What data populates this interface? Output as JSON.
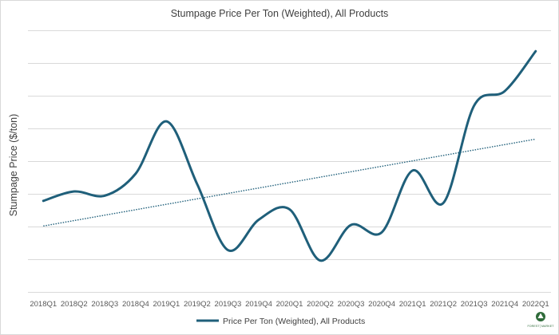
{
  "chart_data": {
    "type": "line",
    "title": "Stumpage Price Per Ton (Weighted), All Products",
    "xlabel": "",
    "ylabel": "Stumpage Price ($/ton)",
    "categories": [
      "2018Q1",
      "2018Q2",
      "2018Q3",
      "2018Q4",
      "2019Q1",
      "2019Q2",
      "2019Q3",
      "2019Q4",
      "2020Q1",
      "2020Q2",
      "2020Q3",
      "2020Q4",
      "2021Q1",
      "2021Q2",
      "2021Q3",
      "2021Q4",
      "2022Q1"
    ],
    "series": [
      {
        "name": "Price Per Ton (Weighted), All Products",
        "color": "#1f5f7a",
        "values": [
          3.7,
          4.6,
          4.2,
          6.3,
          11.3,
          5.3,
          -1.0,
          1.9,
          2.9,
          -2.0,
          1.4,
          0.7,
          6.6,
          3.5,
          12.8,
          14.2,
          18.0
        ],
        "trendline": {
          "type": "linear",
          "start": 1.3,
          "end": 9.6,
          "color": "#1f5f7a"
        }
      }
    ],
    "ylim": [
      -5,
      20
    ],
    "yticks": [
      -5,
      0,
      5,
      10,
      15,
      20
    ],
    "y_tick_labels_shown": false,
    "grid": true,
    "legend": "bottom"
  },
  "logo": {
    "text": "FOREST│MARKET"
  }
}
